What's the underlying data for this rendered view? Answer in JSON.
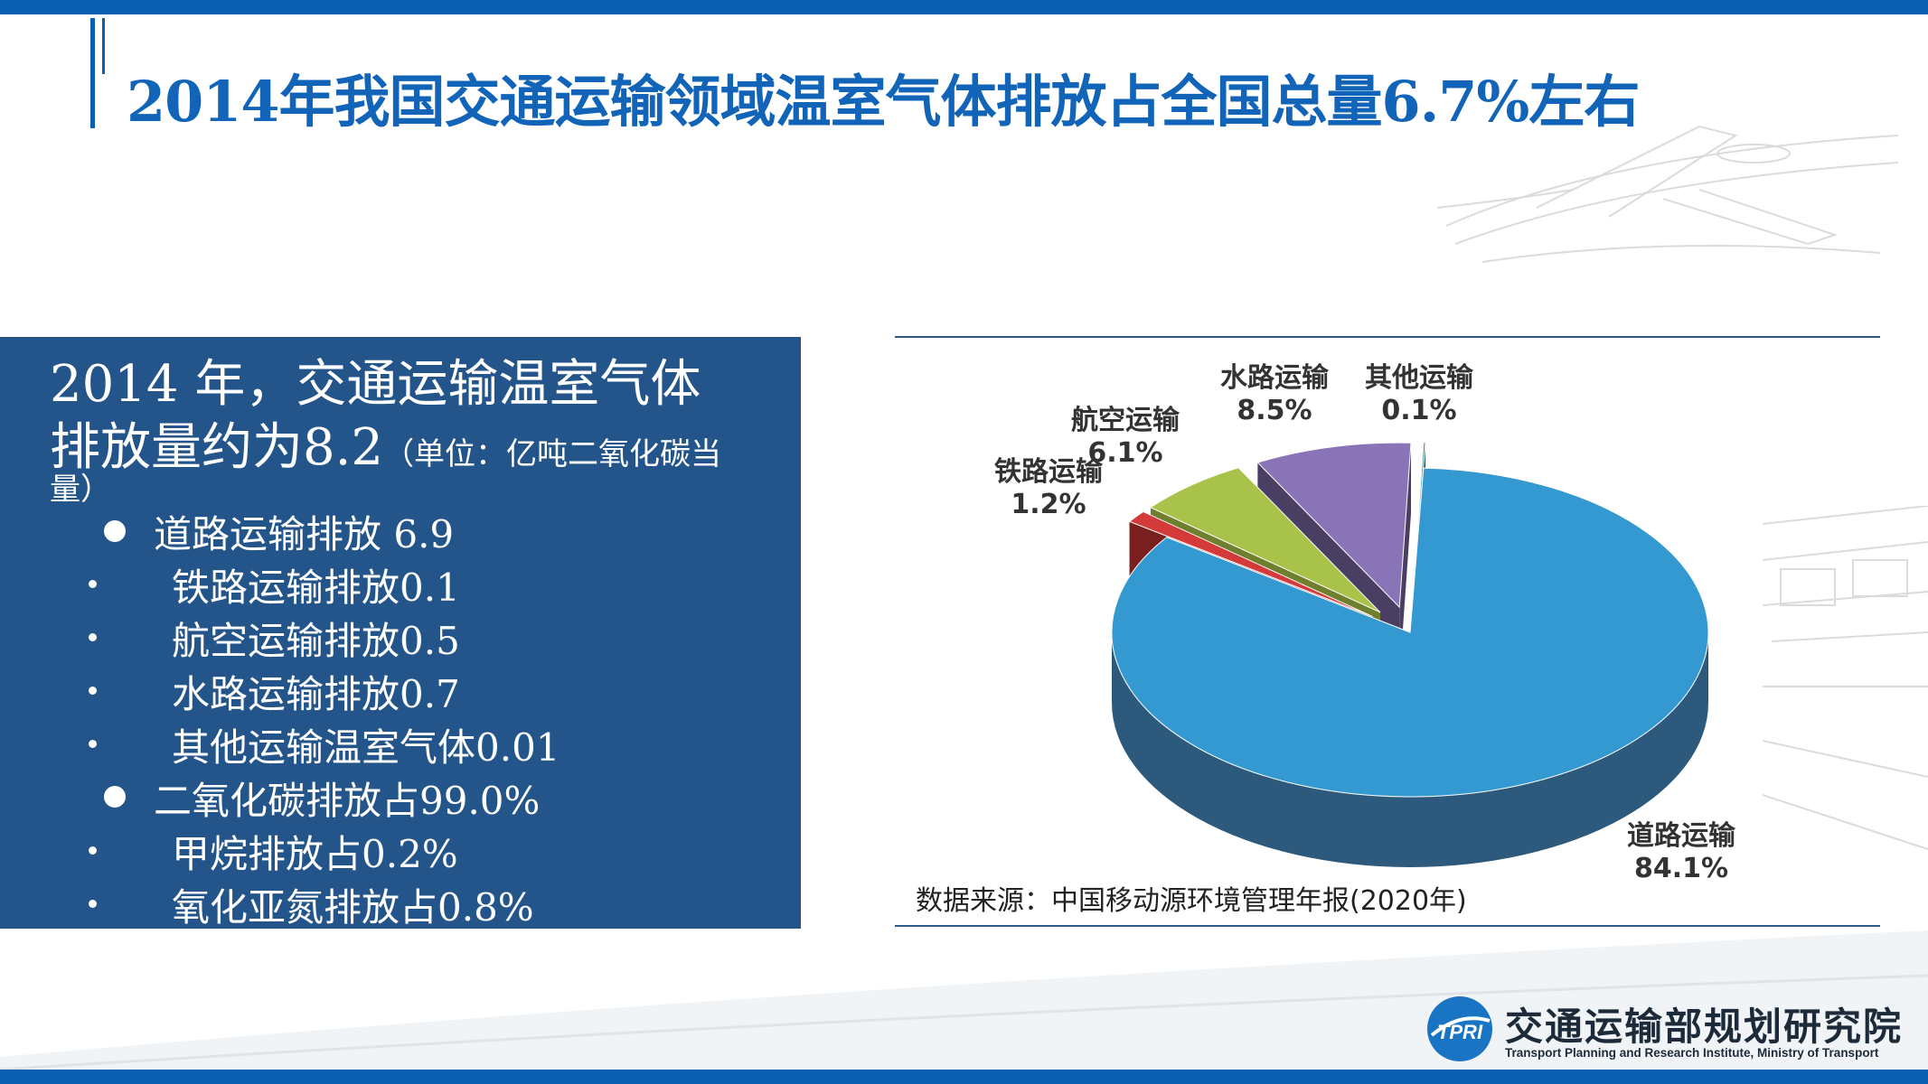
{
  "title": "2014年我国交通运输领域温室气体排放占全国总量6.7%左右",
  "panel": {
    "lead_line1": "2014 年，交通运输温室气体",
    "lead_line2_main": "排放量约为8.2",
    "lead_line2_unit": "（单位：亿吨二氧化碳当",
    "lead_line3": "量）",
    "items": [
      {
        "text": "道路运输排放 6.9",
        "level": 1
      },
      {
        "text": "铁路运输排放0.1",
        "level": 2
      },
      {
        "text": "航空运输排放0.5",
        "level": 2
      },
      {
        "text": "水路运输排放0.7",
        "level": 2
      },
      {
        "text": "其他运输温室气体0.01",
        "level": 2
      },
      {
        "text": "二氧化碳排放占99.0%",
        "level": 1
      },
      {
        "text": "甲烷排放占0.2%",
        "level": 2
      },
      {
        "text": "氧化亚氮排放占0.8%",
        "level": 2
      }
    ]
  },
  "chart_data": {
    "type": "pie",
    "title": "",
    "slices": [
      {
        "name": "道路运输",
        "label_value": "84.1%",
        "value": 84.1,
        "color": "#3499d0",
        "side_color": "#2d5a7c"
      },
      {
        "name": "铁路运输",
        "label_value": "1.2%",
        "value": 1.2,
        "color": "#d43a3a",
        "side_color": "#7a1f1f"
      },
      {
        "name": "航空运输",
        "label_value": "6.1%",
        "value": 6.1,
        "color": "#a9c24a",
        "side_color": "#6f7f2e"
      },
      {
        "name": "水路运输",
        "label_value": "8.5%",
        "value": 8.5,
        "color": "#8a74b8",
        "side_color": "#4a3f63"
      },
      {
        "name": "其他运输",
        "label_value": "0.1%",
        "value": 0.1,
        "color": "#3a8a8a",
        "side_color": "#1f4f4f"
      }
    ],
    "exploded": [
      "铁路运输",
      "航空运输",
      "水路运输",
      "其他运输"
    ],
    "style": "3d"
  },
  "source": "数据来源：中国移动源环境管理年报(2020年)",
  "logo": {
    "mark_text": "TPRI",
    "name_cn": "交通运输部规划研究院",
    "name_en": "Transport Planning and Research Institute, Ministry of Transport"
  },
  "colors": {
    "brand_blue": "#0a5fb0",
    "panel_blue": "#24558a",
    "title_blue": "#1264b8"
  }
}
